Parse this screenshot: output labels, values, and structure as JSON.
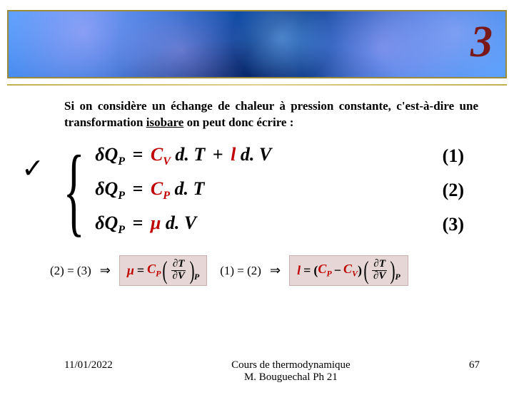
{
  "banner": {
    "section_number": "3"
  },
  "intro": {
    "text_before": "Si on considère un échange de chaleur à pression constante, c'est-à-dire une transformation ",
    "underlined": "isobare",
    "text_after": " on peut donc écrire :"
  },
  "equations": {
    "rows": [
      {
        "lhs_sym": "δQ",
        "lhs_sub": "P",
        "rhs": "cv_dt_l_dv",
        "num": "(1)"
      },
      {
        "lhs_sym": "δQ",
        "lhs_sub": "P",
        "rhs": "cp_dt",
        "num": "(2)"
      },
      {
        "lhs_sym": "δQ",
        "lhs_sub": "P",
        "rhs": "mu_dv",
        "num": "(3)"
      }
    ],
    "terms": {
      "Cv": "C",
      "Cv_sub": "V",
      "Cp": "C",
      "Cp_sub": "P",
      "l": "l",
      "mu": "μ",
      "dT": "d. T",
      "dV": "d. V"
    }
  },
  "derivations": {
    "left_premise": "(2) = (3)",
    "right_premise": "(1) = (2)",
    "implies": "⇒",
    "result_mu": {
      "lhs": "μ",
      "eq": "=",
      "Cp": "C",
      "Cp_sub": "P",
      "partial_num": "∂T",
      "partial_den": "∂V",
      "sub": "P"
    },
    "result_l": {
      "lhs": "l",
      "eq": "=",
      "Cp": "C",
      "Cp_sub": "P",
      "minus": "−",
      "Cv": "C",
      "Cv_sub": "V",
      "partial_num": "∂T",
      "partial_den": "∂V",
      "sub": "P"
    }
  },
  "footer": {
    "date": "11/01/2022",
    "course_line1": "Cours de thermodynamique",
    "course_line2": "M. Bouguechal  Ph 21",
    "page": "67"
  },
  "tick": "✓"
}
